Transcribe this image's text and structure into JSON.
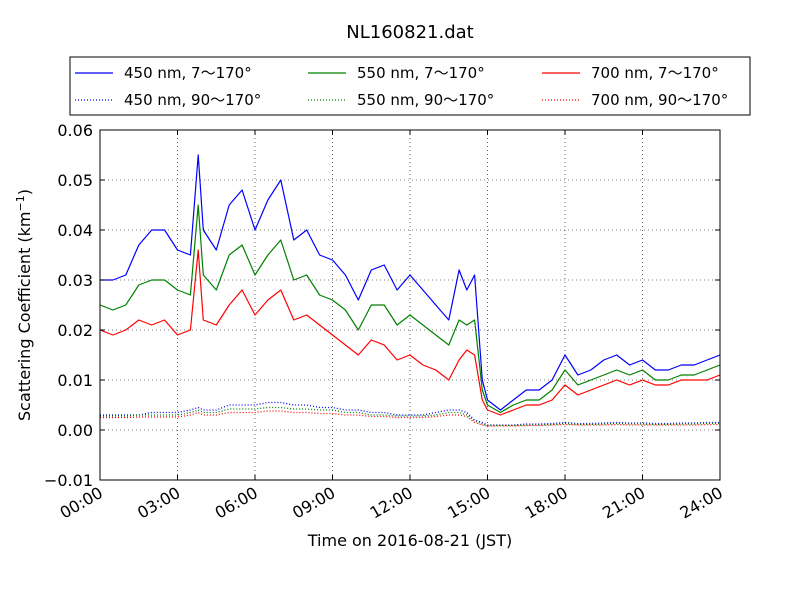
{
  "chart_data": {
    "type": "line",
    "title": "NL160821.dat",
    "xlabel": "Time on 2016-08-21 (JST)",
    "ylabel_main": "Scattering Coefficient (km",
    "ylabel_sup": "−1",
    "ylabel_close": ")",
    "xlim": [
      0,
      24
    ],
    "ylim": [
      -0.01,
      0.06
    ],
    "grid": true,
    "legend_position": "top, above plot (3 columns)",
    "xticks": [
      0,
      3,
      6,
      9,
      12,
      15,
      18,
      21,
      24
    ],
    "xtick_labels": [
      "00:00",
      "03:00",
      "06:00",
      "09:00",
      "12:00",
      "15:00",
      "18:00",
      "21:00",
      "24:00"
    ],
    "yticks": [
      -0.01,
      0.0,
      0.01,
      0.02,
      0.03,
      0.04,
      0.05,
      0.06
    ],
    "ytick_labels": [
      "−0.01",
      "0.00",
      "0.01",
      "0.02",
      "0.03",
      "0.04",
      "0.05",
      "0.06"
    ],
    "x": [
      0,
      0.5,
      1,
      1.5,
      2,
      2.5,
      3,
      3.5,
      3.8,
      4,
      4.5,
      5,
      5.5,
      6,
      6.5,
      7,
      7.5,
      8,
      8.5,
      9,
      9.5,
      10,
      10.5,
      11,
      11.5,
      12,
      12.5,
      13,
      13.5,
      13.9,
      14.2,
      14.5,
      14.8,
      15,
      15.5,
      16,
      16.5,
      17,
      17.5,
      18,
      18.5,
      19,
      19.5,
      20,
      20.5,
      21,
      21.5,
      22,
      22.5,
      23,
      23.5,
      24
    ],
    "series": [
      {
        "name": "450 nm, 7～170°",
        "color": "#0000ff",
        "style": "solid",
        "values": [
          0.03,
          0.03,
          0.031,
          0.037,
          0.04,
          0.04,
          0.036,
          0.035,
          0.055,
          0.04,
          0.036,
          0.045,
          0.048,
          0.04,
          0.046,
          0.05,
          0.038,
          0.04,
          0.035,
          0.034,
          0.031,
          0.026,
          0.032,
          0.033,
          0.028,
          0.031,
          0.028,
          0.025,
          0.022,
          0.032,
          0.028,
          0.031,
          0.01,
          0.006,
          0.004,
          0.006,
          0.008,
          0.008,
          0.01,
          0.015,
          0.011,
          0.012,
          0.014,
          0.015,
          0.013,
          0.014,
          0.012,
          0.012,
          0.013,
          0.013,
          0.014,
          0.015
        ]
      },
      {
        "name": "450 nm, 90～170°",
        "color": "#0000ff",
        "style": "dotted",
        "values": [
          0.003,
          0.003,
          0.003,
          0.003,
          0.0035,
          0.0035,
          0.0035,
          0.004,
          0.0045,
          0.004,
          0.004,
          0.005,
          0.005,
          0.005,
          0.0055,
          0.0055,
          0.005,
          0.005,
          0.0045,
          0.0045,
          0.004,
          0.004,
          0.0035,
          0.0035,
          0.003,
          0.003,
          0.003,
          0.0035,
          0.004,
          0.004,
          0.0035,
          0.002,
          0.0015,
          0.001,
          0.001,
          0.001,
          0.0012,
          0.0012,
          0.0013,
          0.0015,
          0.0013,
          0.0013,
          0.0014,
          0.0015,
          0.0014,
          0.0014,
          0.0013,
          0.0013,
          0.0014,
          0.0014,
          0.0015,
          0.0015
        ]
      },
      {
        "name": "550 nm, 7～170°",
        "color": "#008000",
        "style": "solid",
        "values": [
          0.025,
          0.024,
          0.025,
          0.029,
          0.03,
          0.03,
          0.028,
          0.027,
          0.045,
          0.031,
          0.028,
          0.035,
          0.037,
          0.031,
          0.035,
          0.038,
          0.03,
          0.031,
          0.027,
          0.026,
          0.024,
          0.02,
          0.025,
          0.025,
          0.021,
          0.023,
          0.021,
          0.019,
          0.017,
          0.022,
          0.021,
          0.022,
          0.008,
          0.005,
          0.0035,
          0.005,
          0.006,
          0.006,
          0.008,
          0.012,
          0.009,
          0.01,
          0.011,
          0.012,
          0.011,
          0.012,
          0.01,
          0.01,
          0.011,
          0.011,
          0.012,
          0.013
        ]
      },
      {
        "name": "550 nm, 90～170°",
        "color": "#008000",
        "style": "dotted",
        "values": [
          0.0028,
          0.0028,
          0.0028,
          0.003,
          0.003,
          0.003,
          0.003,
          0.0035,
          0.004,
          0.0035,
          0.0035,
          0.0042,
          0.0042,
          0.0042,
          0.0045,
          0.0045,
          0.0042,
          0.0042,
          0.004,
          0.004,
          0.0035,
          0.0035,
          0.003,
          0.003,
          0.0028,
          0.0028,
          0.0028,
          0.003,
          0.0035,
          0.0035,
          0.003,
          0.0018,
          0.0012,
          0.0009,
          0.0009,
          0.0009,
          0.001,
          0.001,
          0.0011,
          0.0013,
          0.0011,
          0.0011,
          0.0012,
          0.0013,
          0.0012,
          0.0012,
          0.0011,
          0.0011,
          0.0012,
          0.0012,
          0.0013,
          0.0013
        ]
      },
      {
        "name": "700 nm, 7～170°",
        "color": "#ff0000",
        "style": "solid",
        "values": [
          0.02,
          0.019,
          0.02,
          0.022,
          0.021,
          0.022,
          0.019,
          0.02,
          0.036,
          0.022,
          0.021,
          0.025,
          0.028,
          0.023,
          0.026,
          0.028,
          0.022,
          0.023,
          0.021,
          0.019,
          0.017,
          0.015,
          0.018,
          0.017,
          0.014,
          0.015,
          0.013,
          0.012,
          0.01,
          0.014,
          0.016,
          0.015,
          0.006,
          0.004,
          0.003,
          0.004,
          0.005,
          0.005,
          0.006,
          0.009,
          0.007,
          0.008,
          0.009,
          0.01,
          0.009,
          0.01,
          0.009,
          0.009,
          0.01,
          0.01,
          0.01,
          0.011
        ]
      },
      {
        "name": "700 nm, 90～170°",
        "color": "#ff0000",
        "style": "dotted",
        "values": [
          0.0025,
          0.0025,
          0.0025,
          0.0026,
          0.0026,
          0.0026,
          0.0026,
          0.003,
          0.0035,
          0.003,
          0.003,
          0.0035,
          0.0035,
          0.0035,
          0.0038,
          0.0038,
          0.0035,
          0.0035,
          0.0033,
          0.0033,
          0.003,
          0.003,
          0.0027,
          0.0027,
          0.0025,
          0.0025,
          0.0025,
          0.0027,
          0.003,
          0.003,
          0.0027,
          0.0015,
          0.001,
          0.0008,
          0.0008,
          0.0008,
          0.0009,
          0.0009,
          0.001,
          0.0011,
          0.001,
          0.001,
          0.001,
          0.0011,
          0.001,
          0.001,
          0.001,
          0.001,
          0.001,
          0.001,
          0.0011,
          0.0011
        ]
      }
    ]
  }
}
